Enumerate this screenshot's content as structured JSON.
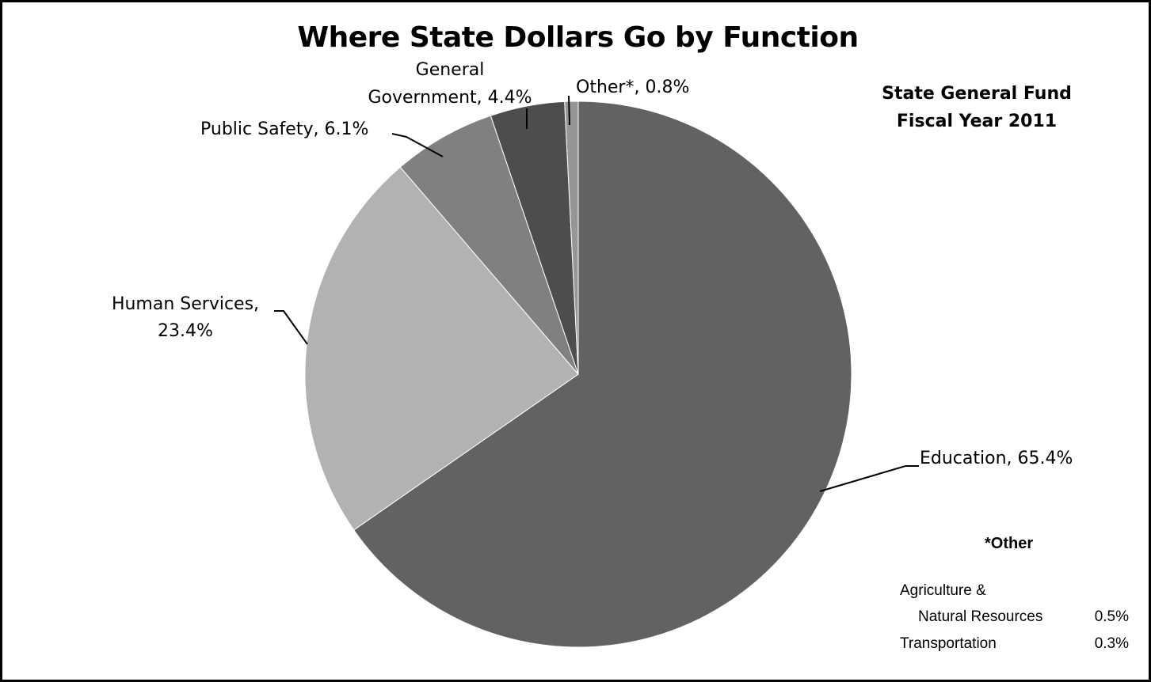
{
  "chart_data": {
    "type": "pie",
    "title": "Where State Dollars Go by Function",
    "subtitle": [
      "State General Fund",
      "Fiscal Year 2011"
    ],
    "slices": [
      {
        "label": "Education",
        "value": 65.4,
        "label_text": [
          "Education, 65.4%"
        ],
        "color": "#626262"
      },
      {
        "label": "Human Services",
        "value": 23.4,
        "label_text": [
          "Human Services,",
          "23.4%"
        ],
        "color": "#b2b2b2"
      },
      {
        "label": "Public Safety",
        "value": 6.1,
        "label_text": [
          "Public Safety, 6.1%"
        ],
        "color": "#808080"
      },
      {
        "label": "General Government",
        "value": 4.4,
        "label_text": [
          "General",
          "Government, 4.4%"
        ],
        "color": "#4d4d4d"
      },
      {
        "label": "Other*",
        "value": 0.8,
        "label_text": [
          "Other*, 0.8%"
        ],
        "color": "#969696"
      }
    ],
    "start": "12 o'clock",
    "direction": "clockwise"
  },
  "footnote": {
    "title": "*Other",
    "items": [
      {
        "label_lines": [
          "Agriculture &",
          "Natural Resources"
        ],
        "value": "0.5%"
      },
      {
        "label_lines": [
          "Transportation"
        ],
        "value": "0.3%"
      }
    ]
  }
}
